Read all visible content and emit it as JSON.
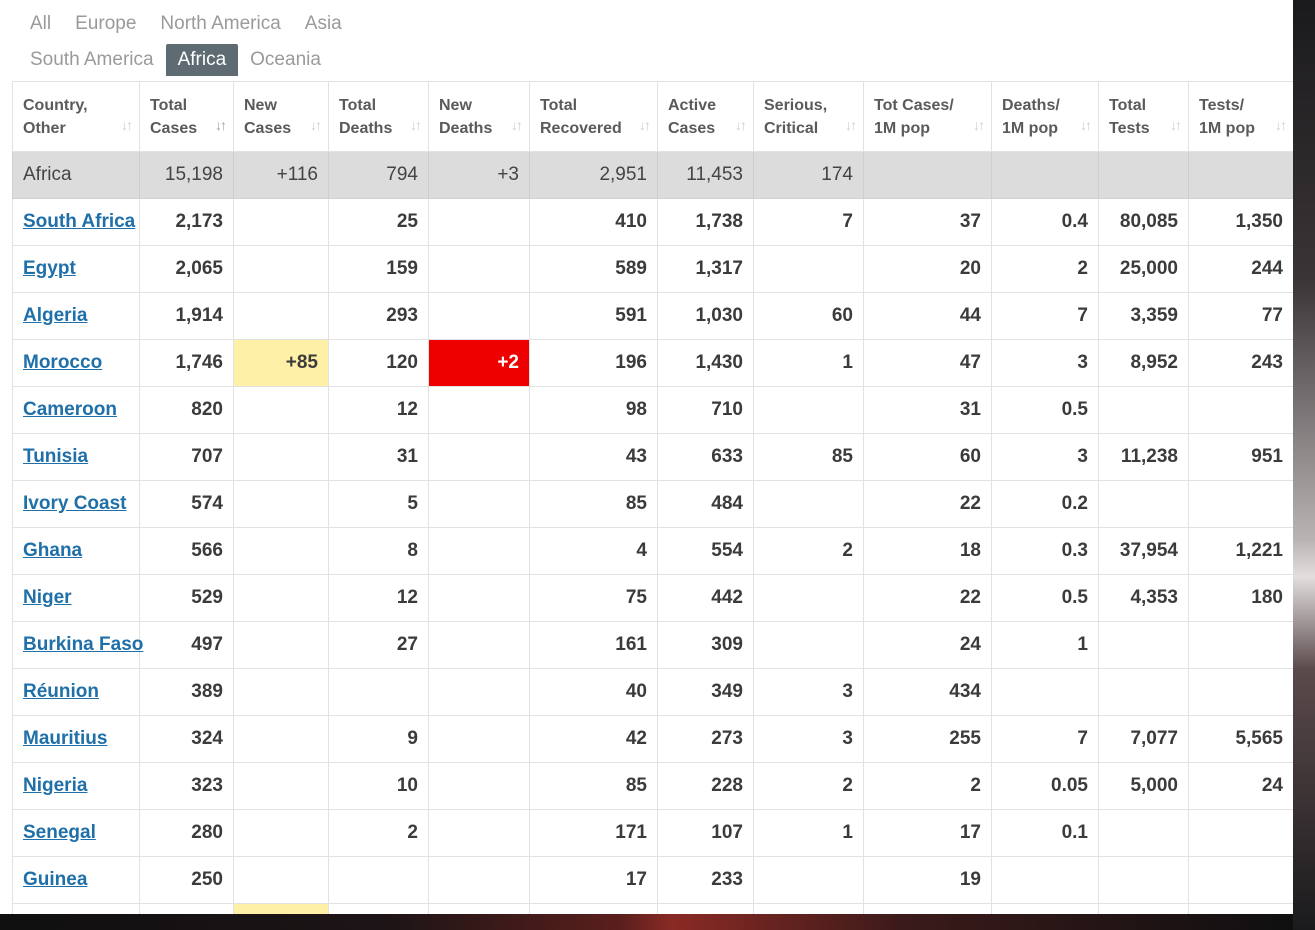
{
  "tabs": {
    "row1": [
      "All",
      "Europe",
      "North America",
      "Asia"
    ],
    "row2": [
      "South America",
      "Africa",
      "Oceania"
    ],
    "active": "Africa"
  },
  "columns": [
    [
      "Country,",
      "Other"
    ],
    [
      "Total",
      "Cases"
    ],
    [
      "New",
      "Cases"
    ],
    [
      "Total",
      "Deaths"
    ],
    [
      "New",
      "Deaths"
    ],
    [
      "Total",
      "Recovered"
    ],
    [
      "Active",
      "Cases"
    ],
    [
      "Serious,",
      "Critical"
    ],
    [
      "Tot Cases/",
      "1M pop"
    ],
    [
      "Deaths/",
      "1M pop"
    ],
    [
      "Total",
      "Tests"
    ],
    [
      "Tests/",
      "1M pop"
    ]
  ],
  "sort_icon": "sort-arrows-icon",
  "total_row": [
    "Africa",
    "15,198",
    "+116",
    "794",
    "+3",
    "2,951",
    "11,453",
    "174",
    "",
    "",
    "",
    ""
  ],
  "rows": [
    [
      "South Africa",
      "2,173",
      "",
      "25",
      "",
      "410",
      "1,738",
      "7",
      "37",
      "0.4",
      "80,085",
      "1,350"
    ],
    [
      "Egypt",
      "2,065",
      "",
      "159",
      "",
      "589",
      "1,317",
      "",
      "20",
      "2",
      "25,000",
      "244"
    ],
    [
      "Algeria",
      "1,914",
      "",
      "293",
      "",
      "591",
      "1,030",
      "60",
      "44",
      "7",
      "3,359",
      "77"
    ],
    [
      "Morocco",
      "1,746",
      "+85",
      "120",
      "+2",
      "196",
      "1,430",
      "1",
      "47",
      "3",
      "8,952",
      "243"
    ],
    [
      "Cameroon",
      "820",
      "",
      "12",
      "",
      "98",
      "710",
      "",
      "31",
      "0.5",
      "",
      ""
    ],
    [
      "Tunisia",
      "707",
      "",
      "31",
      "",
      "43",
      "633",
      "85",
      "60",
      "3",
      "11,238",
      "951"
    ],
    [
      "Ivory Coast",
      "574",
      "",
      "5",
      "",
      "85",
      "484",
      "",
      "22",
      "0.2",
      "",
      ""
    ],
    [
      "Ghana",
      "566",
      "",
      "8",
      "",
      "4",
      "554",
      "2",
      "18",
      "0.3",
      "37,954",
      "1,221"
    ],
    [
      "Niger",
      "529",
      "",
      "12",
      "",
      "75",
      "442",
      "",
      "22",
      "0.5",
      "4,353",
      "180"
    ],
    [
      "Burkina Faso",
      "497",
      "",
      "27",
      "",
      "161",
      "309",
      "",
      "24",
      "1",
      "",
      ""
    ],
    [
      "Réunion",
      "389",
      "",
      "",
      "",
      "40",
      "349",
      "3",
      "434",
      "",
      "",
      ""
    ],
    [
      "Mauritius",
      "324",
      "",
      "9",
      "",
      "42",
      "273",
      "3",
      "255",
      "7",
      "7,077",
      "5,565"
    ],
    [
      "Nigeria",
      "323",
      "",
      "10",
      "",
      "85",
      "228",
      "2",
      "2",
      "0.05",
      "5,000",
      "24"
    ],
    [
      "Senegal",
      "280",
      "",
      "2",
      "",
      "171",
      "107",
      "1",
      "17",
      "0.1",
      "",
      ""
    ],
    [
      "Guinea",
      "250",
      "",
      "",
      "",
      "17",
      "233",
      "",
      "19",
      "",
      "",
      ""
    ]
  ],
  "highlight_colors": {
    "new_cases": "#fff0a8",
    "new_deaths": "#ee0000"
  }
}
